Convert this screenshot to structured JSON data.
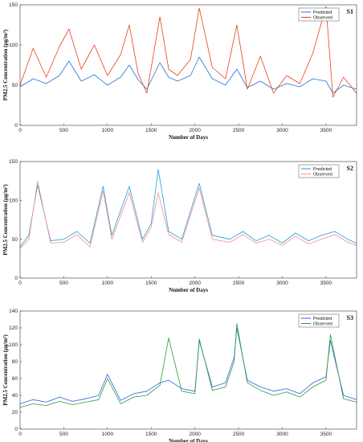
{
  "chart_data": [
    {
      "type": "line",
      "panel_label": "S1",
      "xlabel": "Number of Days",
      "ylabel": "PM2.5 Concentration (µg/m³)",
      "xlim": [
        0,
        3850
      ],
      "ylim": [
        0,
        150
      ],
      "xticks": [
        "0",
        "500",
        "1000",
        "1500",
        "2000",
        "2500",
        "3000",
        "3500"
      ],
      "yticks": [
        "0",
        "50",
        "100",
        "150"
      ],
      "legend_position": "top-right",
      "series": [
        {
          "name": "Predicted",
          "color": "#1f77d4",
          "x": [
            0,
            150,
            300,
            450,
            560,
            700,
            850,
            1000,
            1150,
            1250,
            1350,
            1450,
            1600,
            1700,
            1800,
            1950,
            2050,
            2200,
            2350,
            2480,
            2600,
            2750,
            2900,
            3050,
            3200,
            3350,
            3500,
            3580,
            3700,
            3850
          ],
          "values": [
            48,
            58,
            52,
            62,
            80,
            55,
            63,
            50,
            60,
            75,
            57,
            45,
            78,
            60,
            55,
            62,
            85,
            58,
            50,
            70,
            47,
            55,
            45,
            52,
            48,
            58,
            55,
            40,
            50,
            45
          ]
        },
        {
          "name": "Observed",
          "color": "#e8401c",
          "x": [
            0,
            150,
            300,
            450,
            560,
            700,
            850,
            1000,
            1150,
            1250,
            1350,
            1450,
            1600,
            1700,
            1800,
            1950,
            2050,
            2200,
            2350,
            2480,
            2600,
            2750,
            2900,
            3050,
            3200,
            3350,
            3500,
            3580,
            3700,
            3850
          ],
          "values": [
            50,
            96,
            60,
            98,
            120,
            70,
            100,
            62,
            88,
            125,
            65,
            40,
            135,
            70,
            62,
            82,
            146,
            72,
            58,
            125,
            45,
            86,
            40,
            62,
            52,
            90,
            148,
            35,
            60,
            40
          ]
        }
      ]
    },
    {
      "type": "line",
      "panel_label": "S2",
      "xlabel": "Number of Days",
      "ylabel": "PM2.5 Concentration (µg/m³)",
      "xlim": [
        0,
        3850
      ],
      "ylim": [
        0,
        150
      ],
      "xticks": [
        "0",
        "500",
        "1000",
        "1500",
        "2000",
        "2500",
        "3000",
        "3500"
      ],
      "yticks": [
        "0",
        "50",
        "100",
        "150"
      ],
      "legend_position": "top-right",
      "series": [
        {
          "name": "Predicted",
          "color": "#1f9fd8",
          "x": [
            0,
            100,
            200,
            350,
            500,
            650,
            800,
            950,
            1050,
            1250,
            1400,
            1500,
            1580,
            1700,
            1850,
            2050,
            2200,
            2400,
            2550,
            2700,
            2850,
            3000,
            3150,
            3300,
            3450,
            3600,
            3750,
            3850
          ],
          "values": [
            40,
            55,
            120,
            48,
            50,
            60,
            45,
            118,
            55,
            118,
            50,
            70,
            140,
            60,
            50,
            122,
            55,
            50,
            60,
            48,
            55,
            45,
            58,
            48,
            55,
            60,
            50,
            45
          ]
        },
        {
          "name": "Observed",
          "color": "#ff8a8a",
          "x": [
            0,
            100,
            200,
            350,
            500,
            650,
            800,
            950,
            1050,
            1250,
            1400,
            1500,
            1580,
            1700,
            1850,
            2050,
            2200,
            2400,
            2550,
            2700,
            2850,
            3000,
            3150,
            3300,
            3450,
            3600,
            3750,
            3850
          ],
          "values": [
            38,
            50,
            125,
            45,
            46,
            56,
            40,
            112,
            50,
            110,
            46,
            65,
            110,
            56,
            46,
            116,
            50,
            46,
            56,
            45,
            50,
            42,
            54,
            44,
            50,
            56,
            46,
            42
          ]
        }
      ]
    },
    {
      "type": "line",
      "panel_label": "S3",
      "xlabel": "Number of Days",
      "ylabel": "PM2.5 Concentration (µg/m³)",
      "xlim": [
        0,
        3850
      ],
      "ylim": [
        0,
        140
      ],
      "xticks": [
        "0",
        "500",
        "1000",
        "1500",
        "2000",
        "2500",
        "3000",
        "3500"
      ],
      "yticks": [
        "0",
        "20",
        "40",
        "60",
        "80",
        "100",
        "120",
        "140"
      ],
      "legend_position": "top-right",
      "series": [
        {
          "name": "Predicted",
          "color": "#2f5fe0",
          "x": [
            0,
            150,
            300,
            450,
            600,
            750,
            900,
            1000,
            1150,
            1300,
            1450,
            1600,
            1700,
            1850,
            2000,
            2050,
            2200,
            2350,
            2450,
            2480,
            2600,
            2750,
            2900,
            3050,
            3200,
            3350,
            3500,
            3550,
            3700,
            3850
          ],
          "values": [
            30,
            35,
            32,
            38,
            33,
            36,
            40,
            65,
            34,
            42,
            45,
            55,
            58,
            48,
            45,
            105,
            50,
            55,
            85,
            120,
            58,
            50,
            45,
            48,
            42,
            55,
            62,
            105,
            40,
            35
          ]
        },
        {
          "name": "Observed",
          "color": "#2b9a3a",
          "x": [
            0,
            150,
            300,
            450,
            600,
            750,
            900,
            1000,
            1150,
            1300,
            1450,
            1600,
            1700,
            1850,
            2000,
            2050,
            2200,
            2350,
            2450,
            2480,
            2600,
            2750,
            2900,
            3050,
            3200,
            3350,
            3500,
            3550,
            3700,
            3850
          ],
          "values": [
            26,
            30,
            28,
            33,
            29,
            32,
            35,
            60,
            30,
            38,
            40,
            52,
            108,
            45,
            42,
            107,
            46,
            50,
            80,
            125,
            55,
            46,
            40,
            44,
            38,
            50,
            58,
            112,
            36,
            32
          ]
        }
      ]
    }
  ]
}
